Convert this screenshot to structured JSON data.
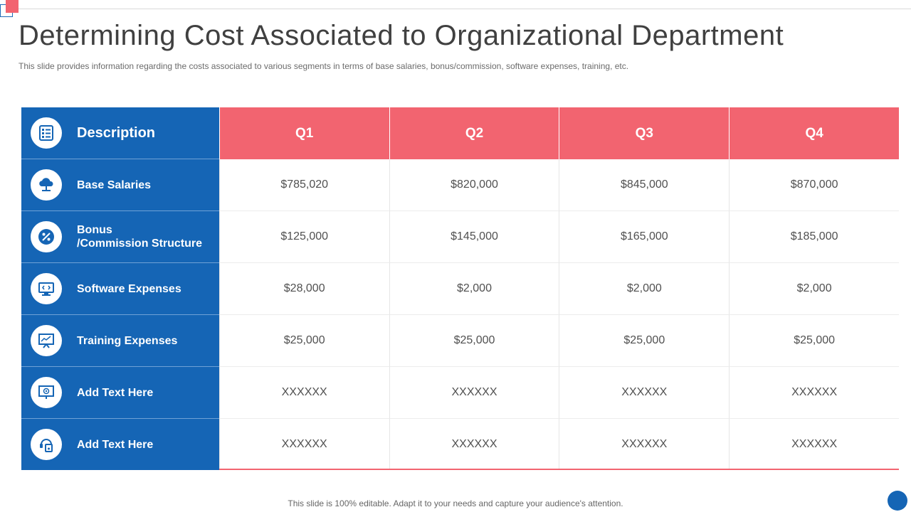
{
  "title": "Determining Cost Associated to Organizational Department",
  "subtitle": "This slide provides information regarding the costs associated to various segments in terms of base salaries, bonus/commission, software expenses, training, etc.",
  "table": {
    "header": {
      "description": "Description",
      "quarters": [
        "Q1",
        "Q2",
        "Q3",
        "Q4"
      ],
      "icon": "checklist-icon"
    },
    "rows": [
      {
        "label": "Base Salaries",
        "icon": "cloud-network-icon",
        "values": [
          "$785,020",
          "$820,000",
          "$845,000",
          "$870,000"
        ]
      },
      {
        "label_line1": "Bonus",
        "label_line2": "/Commission Structure",
        "icon": "percent-badge-icon",
        "values": [
          "$125,000",
          "$145,000",
          "$165,000",
          "$185,000"
        ]
      },
      {
        "label": "Software Expenses",
        "icon": "code-monitor-icon",
        "values": [
          "$28,000",
          "$2,000",
          "$2,000",
          "$2,000"
        ]
      },
      {
        "label": "Training Expenses",
        "icon": "presentation-board-icon",
        "values": [
          "$25,000",
          "$25,000",
          "$25,000",
          "$25,000"
        ]
      },
      {
        "label": "Add Text Here",
        "icon": "projector-screen-icon",
        "values": [
          "XXXXXX",
          "XXXXXX",
          "XXXXXX",
          "XXXXXX"
        ]
      },
      {
        "label": "Add Text Here",
        "icon": "headset-device-icon",
        "values": [
          "XXXXXX",
          "XXXXXX",
          "XXXXXX",
          "XXXXXX"
        ]
      }
    ]
  },
  "footer": "This slide is 100% editable. Adapt it to your needs and capture your audience's attention.",
  "colors": {
    "accent_blue": "#1565b5",
    "accent_red": "#f26470"
  }
}
